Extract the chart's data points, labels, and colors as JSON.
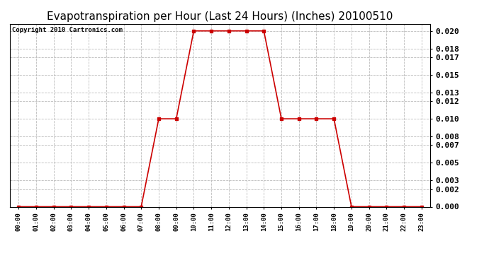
{
  "title": "Evapotranspiration per Hour (Last 24 Hours) (Inches) 20100510",
  "copyright": "Copyright 2010 Cartronics.com",
  "hours": [
    "00:00",
    "01:00",
    "02:00",
    "03:00",
    "04:00",
    "05:00",
    "06:00",
    "07:00",
    "08:00",
    "09:00",
    "10:00",
    "11:00",
    "12:00",
    "13:00",
    "14:00",
    "15:00",
    "16:00",
    "17:00",
    "18:00",
    "19:00",
    "20:00",
    "21:00",
    "22:00",
    "23:00"
  ],
  "values": [
    0.0,
    0.0,
    0.0,
    0.0,
    0.0,
    0.0,
    0.0,
    0.0,
    0.01,
    0.01,
    0.02,
    0.02,
    0.02,
    0.02,
    0.02,
    0.01,
    0.01,
    0.01,
    0.01,
    0.0,
    0.0,
    0.0,
    0.0,
    0.0
  ],
  "line_color": "#cc0000",
  "marker": "s",
  "marker_size": 3,
  "bg_color": "#ffffff",
  "grid_color": "#bbbbbb",
  "ylim": [
    0.0,
    0.0208
  ],
  "yticks": [
    0.0,
    0.002,
    0.003,
    0.005,
    0.007,
    0.008,
    0.01,
    0.012,
    0.013,
    0.015,
    0.017,
    0.018,
    0.02
  ],
  "title_fontsize": 11,
  "copyright_fontsize": 6.5,
  "ylabel_fontsize": 8,
  "xlabel_fontsize": 6.5
}
